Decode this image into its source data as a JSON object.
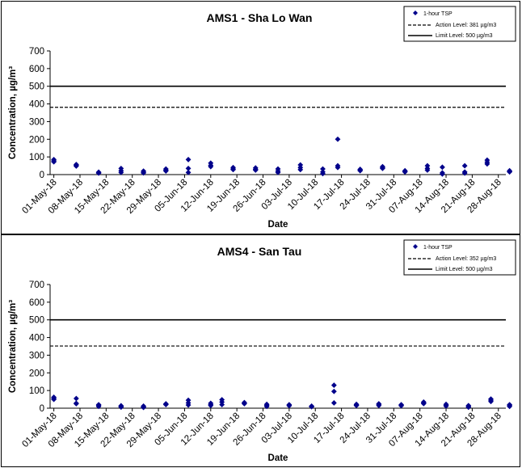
{
  "chart_data": [
    {
      "type": "scatter",
      "title": "AMS1 - Sha Lo Wan",
      "xlabel": "Date",
      "ylabel": "Concentration, µg/m³",
      "ylim": [
        0,
        700
      ],
      "yticks": [
        0,
        100,
        200,
        300,
        400,
        500,
        600,
        700
      ],
      "xlim": [
        "2018-04-30",
        "2018-08-30"
      ],
      "xtick_labels": [
        "01-May-18",
        "08-May-18",
        "15-May-18",
        "22-May-18",
        "29-May-18",
        "05-Jun-18",
        "12-Jun-18",
        "19-Jun-18",
        "26-Jun-18",
        "03-Jul-18",
        "10-Jul-18",
        "17-Jul-18",
        "24-Jul-18",
        "31-Jul-18",
        "07-Aug-18",
        "14-Aug-18",
        "21-Aug-18",
        "28-Aug-18"
      ],
      "legend_position": "top-right",
      "series": [
        {
          "name": "1-hour TSP",
          "marker": "diamond",
          "color": "#00008b",
          "points": [
            [
              "2018-05-01",
              85
            ],
            [
              "2018-05-01",
              78
            ],
            [
              "2018-05-01",
              72
            ],
            [
              "2018-05-07",
              57
            ],
            [
              "2018-05-07",
              52
            ],
            [
              "2018-05-07",
              48
            ],
            [
              "2018-05-13",
              14
            ],
            [
              "2018-05-13",
              10
            ],
            [
              "2018-05-13",
              8
            ],
            [
              "2018-05-19",
              35
            ],
            [
              "2018-05-19",
              22
            ],
            [
              "2018-05-19",
              12
            ],
            [
              "2018-05-25",
              20
            ],
            [
              "2018-05-25",
              13
            ],
            [
              "2018-05-25",
              9
            ],
            [
              "2018-05-31",
              32
            ],
            [
              "2018-05-31",
              25
            ],
            [
              "2018-05-31",
              20
            ],
            [
              "2018-06-06",
              85
            ],
            [
              "2018-06-06",
              35
            ],
            [
              "2018-06-06",
              12
            ],
            [
              "2018-06-12",
              65
            ],
            [
              "2018-06-12",
              52
            ],
            [
              "2018-06-12",
              45
            ],
            [
              "2018-06-18",
              40
            ],
            [
              "2018-06-18",
              32
            ],
            [
              "2018-06-18",
              28
            ],
            [
              "2018-06-24",
              38
            ],
            [
              "2018-06-24",
              30
            ],
            [
              "2018-06-24",
              25
            ],
            [
              "2018-06-30",
              32
            ],
            [
              "2018-06-30",
              20
            ],
            [
              "2018-06-30",
              12
            ],
            [
              "2018-07-06",
              55
            ],
            [
              "2018-07-06",
              40
            ],
            [
              "2018-07-06",
              28
            ],
            [
              "2018-07-12",
              32
            ],
            [
              "2018-07-12",
              15
            ],
            [
              "2018-07-12",
              5
            ],
            [
              "2018-07-16",
              200
            ],
            [
              "2018-07-16",
              50
            ],
            [
              "2018-07-16",
              40
            ],
            [
              "2018-07-22",
              30
            ],
            [
              "2018-07-22",
              25
            ],
            [
              "2018-07-22",
              22
            ],
            [
              "2018-07-28",
              45
            ],
            [
              "2018-07-28",
              40
            ],
            [
              "2018-07-28",
              35
            ],
            [
              "2018-08-03",
              22
            ],
            [
              "2018-08-03",
              18
            ],
            [
              "2018-08-03",
              15
            ],
            [
              "2018-08-09",
              50
            ],
            [
              "2018-08-09",
              35
            ],
            [
              "2018-08-09",
              25
            ],
            [
              "2018-08-13",
              42
            ],
            [
              "2018-08-13",
              10
            ],
            [
              "2018-08-13",
              3
            ],
            [
              "2018-08-19",
              50
            ],
            [
              "2018-08-19",
              15
            ],
            [
              "2018-08-19",
              8
            ],
            [
              "2018-08-25",
              82
            ],
            [
              "2018-08-25",
              70
            ],
            [
              "2018-08-25",
              60
            ],
            [
              "2018-08-31",
              22
            ],
            [
              "2018-08-31",
              18
            ],
            [
              "2018-08-31",
              15
            ]
          ]
        },
        {
          "name": "Action Level: 381 µg/m3",
          "style": "dashed",
          "value": 381
        },
        {
          "name": "Limit Level: 500 µg/m3",
          "style": "solid",
          "value": 500
        }
      ]
    },
    {
      "type": "scatter",
      "title": "AMS4 - San Tau",
      "xlabel": "Date",
      "ylabel": "Concentration, µg/m³",
      "ylim": [
        0,
        700
      ],
      "yticks": [
        0,
        100,
        200,
        300,
        400,
        500,
        600,
        700
      ],
      "xlim": [
        "2018-04-30",
        "2018-08-30"
      ],
      "xtick_labels": [
        "01-May-18",
        "08-May-18",
        "15-May-18",
        "22-May-18",
        "29-May-18",
        "05-Jun-18",
        "12-Jun-18",
        "19-Jun-18",
        "26-Jun-18",
        "03-Jul-18",
        "10-Jul-18",
        "17-Jul-18",
        "24-Jul-18",
        "31-Jul-18",
        "07-Aug-18",
        "14-Aug-18",
        "21-Aug-18",
        "28-Aug-18"
      ],
      "legend_position": "top-right",
      "series": [
        {
          "name": "1-hour TSP",
          "marker": "diamond",
          "color": "#00008b",
          "points": [
            [
              "2018-05-01",
              62
            ],
            [
              "2018-05-01",
              55
            ],
            [
              "2018-05-01",
              50
            ],
            [
              "2018-05-07",
              55
            ],
            [
              "2018-05-07",
              28
            ],
            [
              "2018-05-07",
              25
            ],
            [
              "2018-05-13",
              20
            ],
            [
              "2018-05-13",
              15
            ],
            [
              "2018-05-13",
              10
            ],
            [
              "2018-05-19",
              14
            ],
            [
              "2018-05-19",
              10
            ],
            [
              "2018-05-19",
              6
            ],
            [
              "2018-05-25",
              12
            ],
            [
              "2018-05-25",
              8
            ],
            [
              "2018-05-25",
              4
            ],
            [
              "2018-05-31",
              25
            ],
            [
              "2018-05-31",
              22
            ],
            [
              "2018-05-31",
              20
            ],
            [
              "2018-06-06",
              45
            ],
            [
              "2018-06-06",
              30
            ],
            [
              "2018-06-06",
              18
            ],
            [
              "2018-06-12",
              28
            ],
            [
              "2018-06-12",
              20
            ],
            [
              "2018-06-12",
              15
            ],
            [
              "2018-06-15",
              48
            ],
            [
              "2018-06-15",
              35
            ],
            [
              "2018-06-15",
              20
            ],
            [
              "2018-06-21",
              32
            ],
            [
              "2018-06-21",
              28
            ],
            [
              "2018-06-21",
              25
            ],
            [
              "2018-06-27",
              22
            ],
            [
              "2018-06-27",
              15
            ],
            [
              "2018-06-27",
              10
            ],
            [
              "2018-07-03",
              20
            ],
            [
              "2018-07-03",
              16
            ],
            [
              "2018-07-03",
              14
            ],
            [
              "2018-07-09",
              12
            ],
            [
              "2018-07-09",
              10
            ],
            [
              "2018-07-09",
              8
            ],
            [
              "2018-07-15",
              130
            ],
            [
              "2018-07-15",
              95
            ],
            [
              "2018-07-15",
              30
            ],
            [
              "2018-07-21",
              22
            ],
            [
              "2018-07-21",
              18
            ],
            [
              "2018-07-21",
              15
            ],
            [
              "2018-07-27",
              25
            ],
            [
              "2018-07-27",
              20
            ],
            [
              "2018-07-27",
              15
            ],
            [
              "2018-08-02",
              20
            ],
            [
              "2018-08-02",
              16
            ],
            [
              "2018-08-02",
              14
            ],
            [
              "2018-08-08",
              35
            ],
            [
              "2018-08-08",
              30
            ],
            [
              "2018-08-08",
              26
            ],
            [
              "2018-08-14",
              22
            ],
            [
              "2018-08-14",
              16
            ],
            [
              "2018-08-14",
              12
            ],
            [
              "2018-08-20",
              15
            ],
            [
              "2018-08-20",
              10
            ],
            [
              "2018-08-20",
              5
            ],
            [
              "2018-08-26",
              52
            ],
            [
              "2018-08-26",
              45
            ],
            [
              "2018-08-26",
              38
            ],
            [
              "2018-08-31",
              20
            ],
            [
              "2018-08-31",
              15
            ],
            [
              "2018-08-31",
              10
            ]
          ]
        },
        {
          "name": "Action Level: 352 µg/m3",
          "style": "dashed",
          "value": 352
        },
        {
          "name": "Limit Level: 500 µg/m3",
          "style": "solid",
          "value": 500
        }
      ]
    }
  ]
}
